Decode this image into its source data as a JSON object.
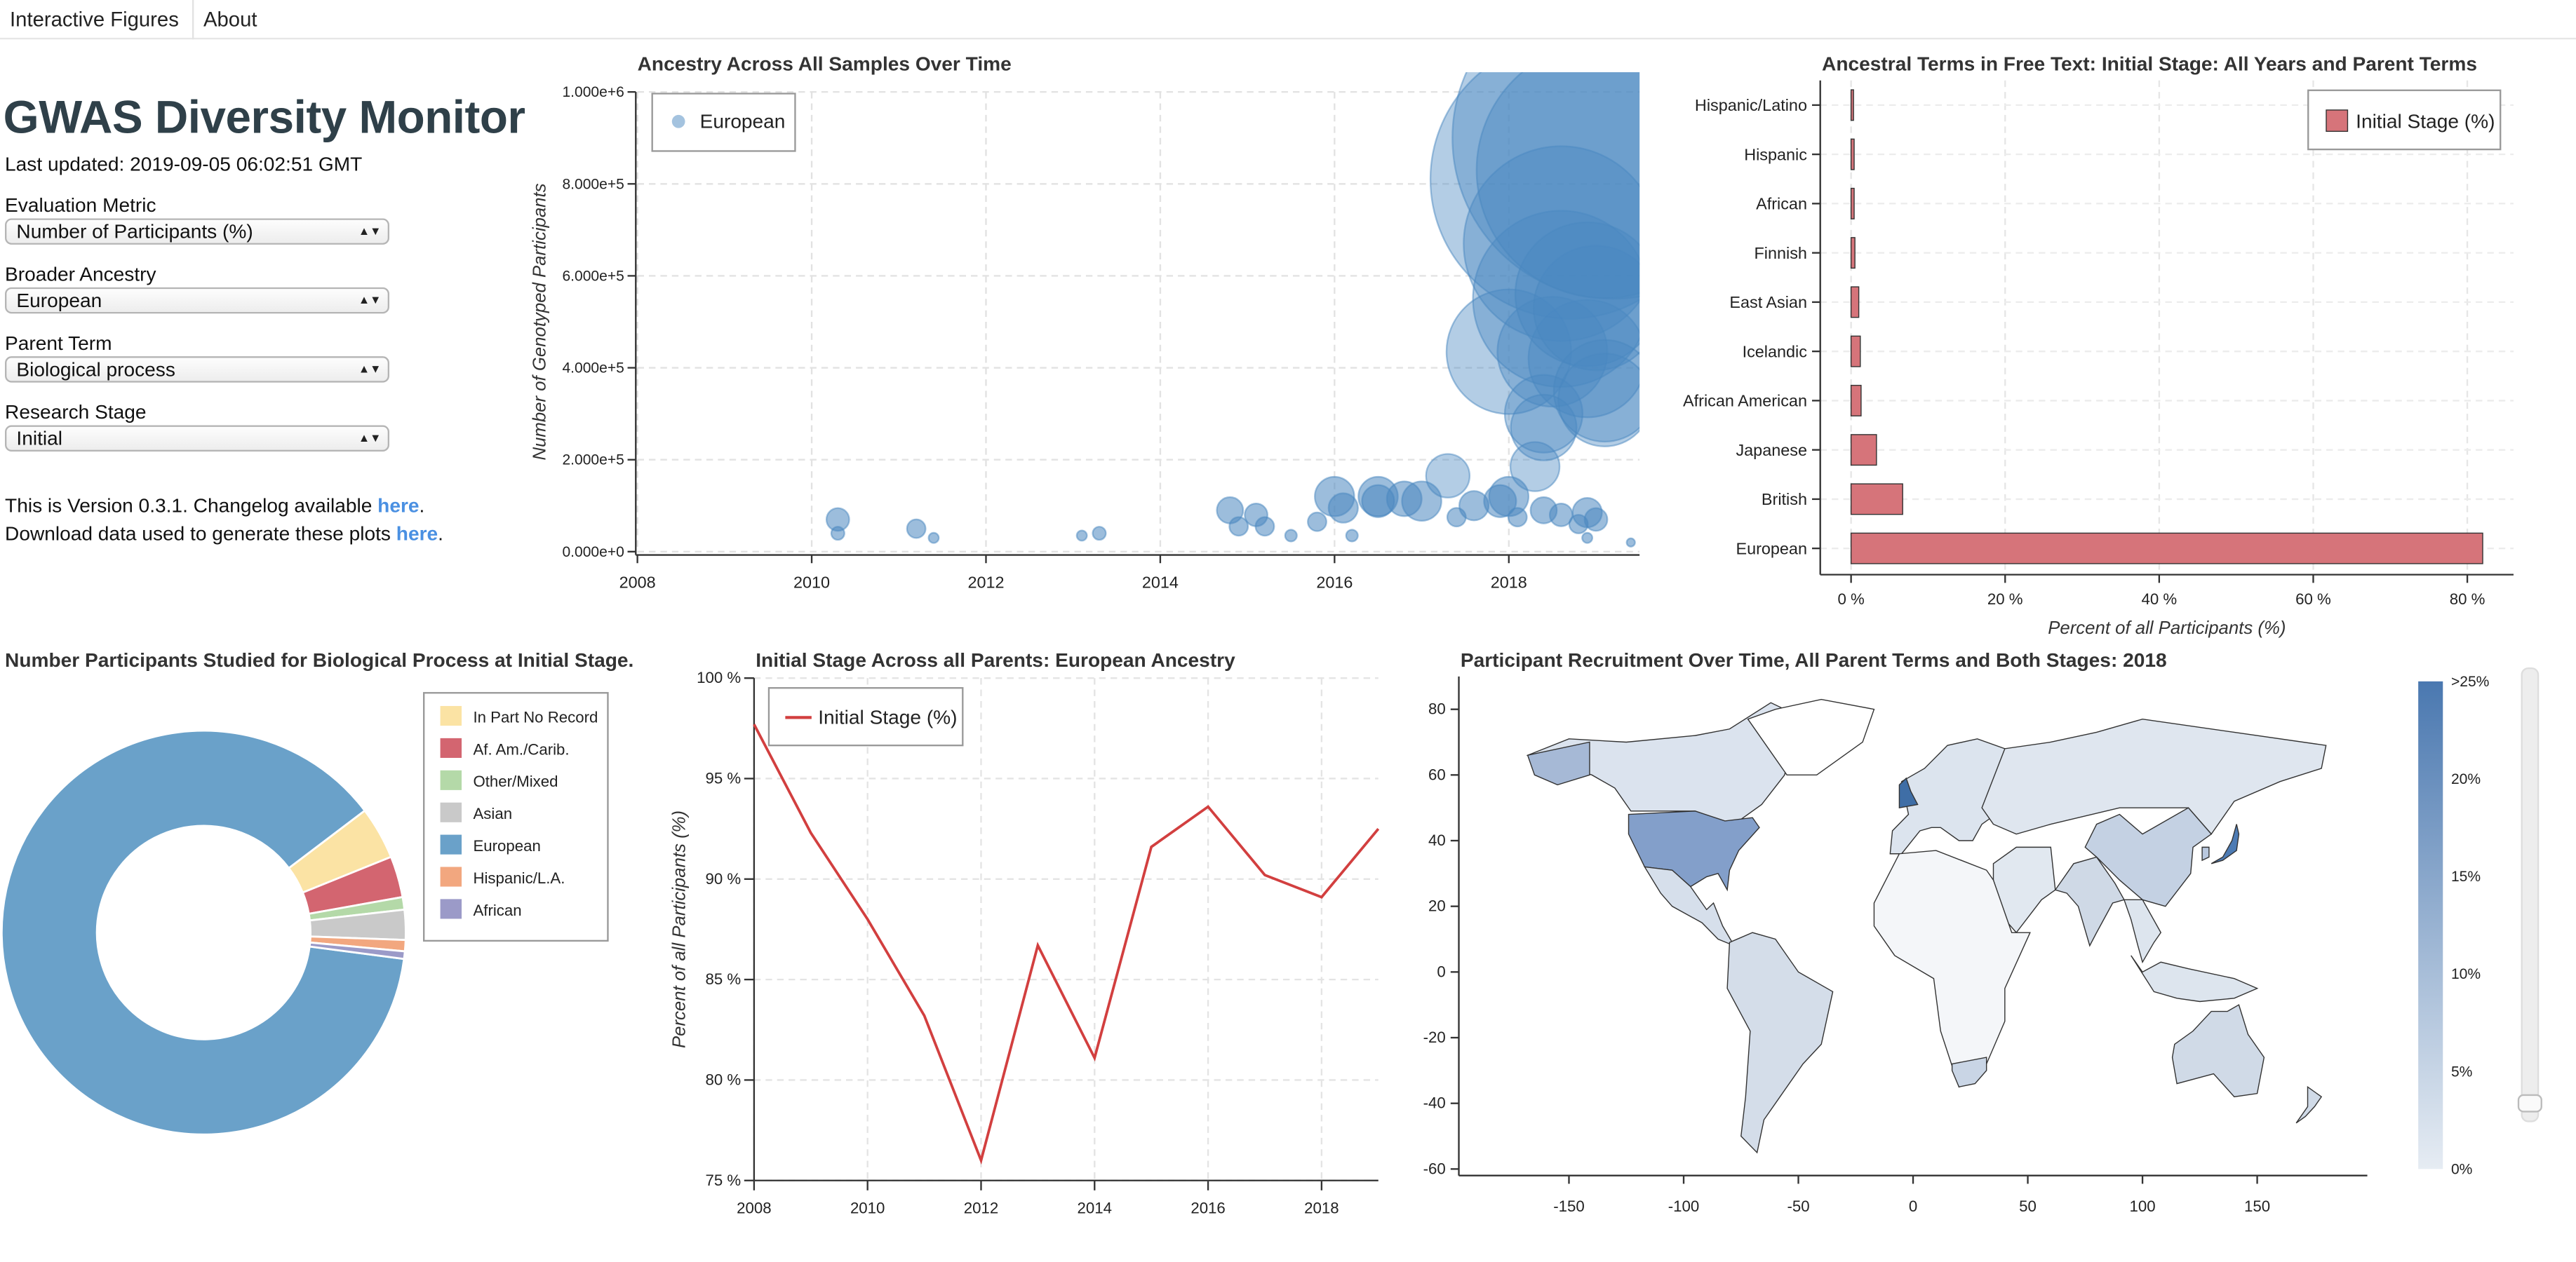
{
  "nav": {
    "interactive_figures": "Interactive Figures",
    "about": "About"
  },
  "sidebar": {
    "title": "GWAS Diversity Monitor",
    "last_updated": "Last updated: 2019-09-05 06:02:51 GMT",
    "controls": [
      {
        "label": "Evaluation Metric",
        "value": "Number of Participants (%)"
      },
      {
        "label": "Broader Ancestry",
        "value": "European"
      },
      {
        "label": "Parent Term",
        "value": "Biological process"
      },
      {
        "label": "Research Stage",
        "value": "Initial"
      }
    ],
    "version_prefix": "This is Version 0.3.1. Changelog available ",
    "download_prefix": "Download data used to generate these plots ",
    "here_link": "here",
    "period": "."
  },
  "colors": {
    "blue": "#5a8fc4",
    "red": "#d6747a",
    "line": "#d23f3f",
    "title": "#2f4049",
    "link": "#4a90e2"
  },
  "chart_data": [
    {
      "type": "scatter",
      "title": "Ancestry Across All Samples Over Time",
      "ylabel": "Number of Genotyped Participants",
      "xlabel": "",
      "xlim": [
        2008,
        2019.5
      ],
      "ylim": [
        0,
        1000000
      ],
      "xticks": [
        "2008",
        "2010",
        "2012",
        "2014",
        "2016",
        "2018"
      ],
      "yticks": [
        "0.000e+0",
        "2.000e+5",
        "4.000e+5",
        "6.000e+5",
        "8.000e+5",
        "1.000e+6"
      ],
      "legend": [
        "European"
      ],
      "legend_position": "top-left",
      "grid": true,
      "points": [
        {
          "x": 2010.3,
          "y": 70000,
          "s": 300
        },
        {
          "x": 2010.3,
          "y": 40000,
          "s": 100
        },
        {
          "x": 2011.2,
          "y": 50000,
          "s": 200
        },
        {
          "x": 2011.4,
          "y": 30000,
          "s": 60
        },
        {
          "x": 2013.1,
          "y": 35000,
          "s": 60
        },
        {
          "x": 2013.3,
          "y": 40000,
          "s": 100
        },
        {
          "x": 2014.8,
          "y": 90000,
          "s": 400
        },
        {
          "x": 2014.9,
          "y": 55000,
          "s": 200
        },
        {
          "x": 2015.1,
          "y": 80000,
          "s": 300
        },
        {
          "x": 2015.2,
          "y": 55000,
          "s": 200
        },
        {
          "x": 2015.5,
          "y": 35000,
          "s": 80
        },
        {
          "x": 2015.8,
          "y": 65000,
          "s": 200
        },
        {
          "x": 2016.0,
          "y": 120000,
          "s": 900
        },
        {
          "x": 2016.1,
          "y": 95000,
          "s": 500
        },
        {
          "x": 2016.2,
          "y": 35000,
          "s": 80
        },
        {
          "x": 2016.5,
          "y": 120000,
          "s": 900
        },
        {
          "x": 2016.5,
          "y": 110000,
          "s": 600
        },
        {
          "x": 2016.8,
          "y": 115000,
          "s": 700
        },
        {
          "x": 2017.0,
          "y": 110000,
          "s": 900
        },
        {
          "x": 2017.3,
          "y": 165000,
          "s": 1100
        },
        {
          "x": 2017.4,
          "y": 75000,
          "s": 200
        },
        {
          "x": 2017.6,
          "y": 100000,
          "s": 500
        },
        {
          "x": 2017.9,
          "y": 110000,
          "s": 600
        },
        {
          "x": 2018.0,
          "y": 120000,
          "s": 900
        },
        {
          "x": 2018.1,
          "y": 75000,
          "s": 200
        },
        {
          "x": 2018.3,
          "y": 185000,
          "s": 1400
        },
        {
          "x": 2018.0,
          "y": 435000,
          "s": 9000
        },
        {
          "x": 2018.5,
          "y": 435000,
          "s": 7000
        },
        {
          "x": 2018.9,
          "y": 420000,
          "s": 8000
        },
        {
          "x": 2018.4,
          "y": 300000,
          "s": 3500
        },
        {
          "x": 2018.4,
          "y": 270000,
          "s": 2500
        },
        {
          "x": 2018.6,
          "y": 550000,
          "s": 18000
        },
        {
          "x": 2018.6,
          "y": 670000,
          "s": 22000
        },
        {
          "x": 2018.7,
          "y": 810000,
          "s": 45000
        },
        {
          "x": 2018.9,
          "y": 560000,
          "s": 12000
        },
        {
          "x": 2019.0,
          "y": 530000,
          "s": 9000
        },
        {
          "x": 2019.1,
          "y": 330000,
          "s": 5000
        },
        {
          "x": 2019.1,
          "y": 350000,
          "s": 6000
        },
        {
          "x": 2019.2,
          "y": 900000,
          "s": 60000
        },
        {
          "x": 2019.1,
          "y": 830000,
          "s": 38000
        },
        {
          "x": 2018.4,
          "y": 90000,
          "s": 400
        },
        {
          "x": 2018.6,
          "y": 80000,
          "s": 300
        },
        {
          "x": 2018.8,
          "y": 60000,
          "s": 200
        },
        {
          "x": 2018.9,
          "y": 85000,
          "s": 500
        },
        {
          "x": 2019.0,
          "y": 70000,
          "s": 300
        },
        {
          "x": 2018.9,
          "y": 30000,
          "s": 60
        },
        {
          "x": 2019.4,
          "y": 20000,
          "s": 40
        }
      ]
    },
    {
      "type": "bar",
      "orientation": "horizontal",
      "title": "Ancestral Terms in Free Text: Initial Stage: All Years and Parent Terms",
      "xlabel": "Percent of all Participants (%)",
      "categories": [
        "Hispanic/Latino",
        "Hispanic",
        "African",
        "Finnish",
        "East Asian",
        "Icelandic",
        "African American",
        "Japanese",
        "British",
        "European"
      ],
      "values": [
        0.3,
        0.4,
        0.4,
        0.5,
        1.0,
        1.2,
        1.3,
        3.3,
        6.7,
        82.0
      ],
      "xlim": [
        -4,
        86
      ],
      "xticks": [
        "0 %",
        "20 %",
        "40 %",
        "60 %",
        "80 %"
      ],
      "legend": [
        "Initial Stage (%)"
      ],
      "legend_position": "top-right",
      "grid": true
    },
    {
      "type": "pie",
      "style": "donut",
      "title": "Number Participants Studied for Biological Process at Initial Stage.",
      "legend_position": "right",
      "slices": [
        {
          "label": "European",
          "value": 87.6,
          "color": "#6aa1c9"
        },
        {
          "label": "In Part No Record",
          "value": 4.2,
          "color": "#fbe3a4"
        },
        {
          "label": "Af. Am./Carib.",
          "value": 3.3,
          "color": "#d36570"
        },
        {
          "label": "Other/Mixed",
          "value": 1.0,
          "color": "#b4d9a8"
        },
        {
          "label": "Asian",
          "value": 2.4,
          "color": "#c9c9c9"
        },
        {
          "label": "Hispanic/L.A.",
          "value": 0.9,
          "color": "#f2a77f"
        },
        {
          "label": "African",
          "value": 0.6,
          "color": "#9b9ac8"
        }
      ],
      "legend": [
        "In Part No Record",
        "Af. Am./Carib.",
        "Other/Mixed",
        "Asian",
        "European",
        "Hispanic/L.A.",
        "African"
      ],
      "legend_colors": [
        "#fbe3a4",
        "#d36570",
        "#b4d9a8",
        "#c9c9c9",
        "#6aa1c9",
        "#f2a77f",
        "#9b9ac8"
      ]
    },
    {
      "type": "line",
      "title": "Initial Stage Across all Parents: European Ancestry",
      "ylabel": "Percent of all Participants (%)",
      "x": [
        2008,
        2009,
        2010,
        2011,
        2012,
        2013,
        2014,
        2015,
        2016,
        2017,
        2018,
        2019
      ],
      "series": [
        {
          "name": "Initial Stage (%)",
          "values": [
            97.7,
            92.3,
            88.0,
            83.2,
            76.0,
            86.7,
            81.1,
            91.6,
            93.6,
            90.2,
            89.1,
            92.5
          ]
        }
      ],
      "xlim": [
        2008,
        2019
      ],
      "ylim": [
        75,
        100
      ],
      "xticks": [
        "2008",
        "2010",
        "2012",
        "2014",
        "2016",
        "2018"
      ],
      "yticks": [
        "75 %",
        "80 %",
        "85 %",
        "90 %",
        "95 %",
        "100 %"
      ],
      "legend_position": "top-left",
      "grid": true
    },
    {
      "type": "map",
      "title": "Participant Recruitment Over Time, All Parent Terms and Both Stages: 2018",
      "xticks": [
        "-150",
        "-100",
        "-50",
        "0",
        "50",
        "100",
        "150"
      ],
      "yticks": [
        "80",
        "60",
        "40",
        "20",
        "0",
        "-20",
        "-40",
        "-60"
      ],
      "colorbar": [
        "0%",
        "5%",
        "10%",
        "15%",
        "20%",
        ">25%"
      ],
      "year_slider": {
        "label": "2018",
        "value": 2018
      }
    }
  ]
}
